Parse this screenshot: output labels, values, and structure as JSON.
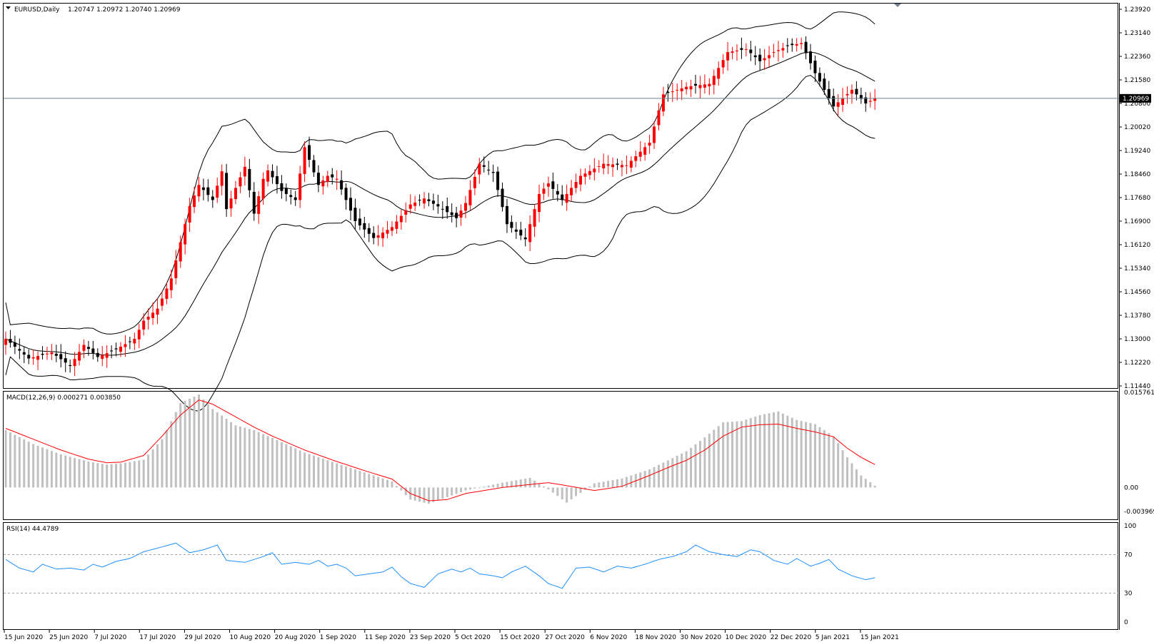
{
  "header": {
    "symbol": "EURUSD,Daily",
    "ohlc": "1.20747 1.20972 1.20740 1.20969"
  },
  "macd_label": "MACD(12,26,9) 0.000271 0.003850",
  "rsi_label": "RSI(14) 44.4789",
  "current_price": "1.20969",
  "colors": {
    "bull": "#ff0000",
    "bear": "#000000",
    "bands": "#000000",
    "macd_hist": "#c0c0c0",
    "macd_signal": "#ff0000",
    "rsi": "#1e90ff",
    "price_line": "#708090"
  },
  "chart_data": [
    {
      "type": "candlestick",
      "title": "EURUSD,Daily",
      "y_ticks": [
        "1.23920",
        "1.23140",
        "1.22360",
        "1.21580",
        "1.20800",
        "1.20020",
        "1.19240",
        "1.18460",
        "1.17680",
        "1.16900",
        "1.16120",
        "1.15340",
        "1.14560",
        "1.13780",
        "1.13000",
        "1.12220",
        "1.11440"
      ],
      "ylim": [
        1.1144,
        1.2392
      ],
      "x_ticks": [
        "15 Jun 2020",
        "25 Jun 2020",
        "7 Jul 2020",
        "17 Jul 2020",
        "29 Jul 2020",
        "10 Aug 2020",
        "20 Aug 2020",
        "1 Sep 2020",
        "11 Sep 2020",
        "23 Sep 2020",
        "5 Oct 2020",
        "15 Oct 2020",
        "27 Oct 2020",
        "6 Nov 2020",
        "18 Nov 2020",
        "30 Nov 2020",
        "10 Dec 2020",
        "22 Dec 2020",
        "5 Jan 2021",
        "15 Jan 2021"
      ],
      "series": [
        {
          "name": "EURUSD",
          "close_anchors": [
            1.13,
            1.1235,
            1.1255,
            1.121,
            1.128,
            1.124,
            1.1265,
            1.13,
            1.136,
            1.14,
            1.15,
            1.162,
            1.174,
            1.181,
            1.176,
            1.1855,
            1.173,
            1.187,
            1.1715,
            1.183,
            1.1858,
            1.179,
            1.176,
            1.1935,
            1.181,
            1.184,
            1.183,
            1.169,
            1.1634,
            1.167,
            1.1745,
            1.1765,
            1.173,
            1.17,
            1.175,
            1.188,
            1.185,
            1.168,
            1.163,
            1.178,
            1.1815,
            1.176,
            1.184,
            1.188,
            1.1875,
            1.195,
            1.211,
            1.2135,
            1.2145,
            1.225,
            1.226,
            1.222,
            1.225,
            1.227,
            1.228,
            1.218,
            1.207,
            1.2125,
            1.208,
            1.2097
          ],
          "anchor_labels_x": [
            0,
            5,
            10,
            14,
            17,
            20,
            24,
            28,
            30,
            33,
            36,
            38,
            40,
            42,
            45,
            47,
            48,
            52,
            54,
            56,
            57,
            60,
            63,
            65,
            68,
            70,
            72,
            76,
            80,
            84,
            88,
            91,
            95,
            98,
            100,
            103,
            106,
            109,
            113,
            116,
            118,
            121,
            125,
            130,
            135,
            140,
            143,
            148,
            153,
            157,
            161,
            164,
            167,
            170,
            173,
            176,
            180,
            184,
            187,
            189
          ]
        },
        {
          "name": "Bands",
          "upper_top_region": 1.225,
          "lower_bottom_region": 1.116
        }
      ]
    },
    {
      "type": "bar",
      "title": "MACD(12,26,9) 0.000271 0.003850",
      "y_ticks": [
        "0.015761",
        "0.00",
        "-0.003969"
      ],
      "ylim": [
        -0.003969,
        0.015761
      ],
      "series": [
        {
          "name": "MACD",
          "anchor_values": [
            0.0095,
            0.0072,
            0.0055,
            0.0043,
            0.0038,
            0.004,
            0.0046,
            0.008,
            0.014,
            0.0154,
            0.013,
            0.0103,
            0.0095,
            0.0082,
            0.0058,
            0.004,
            0.0025,
            0.001,
            -0.002,
            -0.0027,
            -0.0016,
            -0.0005,
            0.0008,
            0.0016,
            -0.0003,
            -0.0025,
            0.0007,
            0.0015,
            0.003,
            0.0045,
            0.006,
            0.0083,
            0.0108,
            0.011,
            0.012,
            0.0126,
            0.0112,
            0.0105,
            0.0085,
            0.005,
            0.002,
            0.0003
          ],
          "anchor_x": [
            0,
            6,
            12,
            18,
            22,
            25,
            30,
            34,
            38,
            42,
            45,
            50,
            54,
            58,
            65,
            72,
            78,
            84,
            88,
            92,
            96,
            100,
            108,
            114,
            118,
            122,
            128,
            134,
            140,
            144,
            148,
            152,
            156,
            160,
            164,
            168,
            172,
            176,
            180,
            183,
            186,
            189
          ]
        },
        {
          "name": "Signal",
          "anchor_values": [
            0.0098,
            0.008,
            0.0062,
            0.0047,
            0.0041,
            0.0042,
            0.0053,
            0.0085,
            0.012,
            0.0145,
            0.0138,
            0.0117,
            0.01,
            0.0085,
            0.0062,
            0.0043,
            0.0028,
            0.0014,
            -0.001,
            -0.0022,
            -0.002,
            -0.001,
            0.0,
            0.0005,
            0.0008,
            0.0003,
            -0.0005,
            0.0002,
            0.002,
            0.0033,
            0.0045,
            0.0062,
            0.0085,
            0.01,
            0.0104,
            0.0105,
            0.0098,
            0.0092,
            0.0084,
            0.0065,
            0.005,
            0.0038
          ],
          "anchor_x": [
            0,
            6,
            12,
            18,
            22,
            25,
            30,
            34,
            38,
            42,
            45,
            50,
            54,
            58,
            65,
            72,
            78,
            84,
            88,
            92,
            96,
            100,
            108,
            114,
            118,
            122,
            128,
            134,
            140,
            144,
            148,
            152,
            156,
            160,
            164,
            168,
            172,
            176,
            180,
            183,
            186,
            189
          ]
        }
      ]
    },
    {
      "type": "line",
      "title": "RSI(14) 44.4789",
      "y_ticks": [
        "100",
        "70",
        "30",
        "0"
      ],
      "ylim": [
        0,
        100
      ],
      "levels": [
        70,
        30
      ],
      "series": [
        {
          "name": "RSI",
          "anchor_values": [
            65,
            56,
            52,
            60,
            55,
            56,
            54,
            60,
            57,
            63,
            66,
            73,
            78,
            82,
            72,
            75,
            80,
            64,
            62,
            68,
            72,
            60,
            62,
            60,
            64,
            58,
            60,
            56,
            48,
            50,
            52,
            57,
            47,
            40,
            36,
            50,
            55,
            52,
            56,
            50,
            48,
            46,
            52,
            58,
            48,
            40,
            35,
            56,
            57,
            52,
            58,
            56,
            60,
            65,
            68,
            73,
            80,
            73,
            70,
            68,
            75,
            73,
            64,
            60,
            66,
            58,
            61,
            65,
            55,
            48,
            44,
            46
          ],
          "anchor_x": [
            0,
            3,
            6,
            8,
            11,
            14,
            17,
            19,
            21,
            24,
            27,
            30,
            34,
            37,
            40,
            43,
            46,
            48,
            52,
            56,
            58,
            60,
            63,
            66,
            68,
            70,
            72,
            74,
            76,
            79,
            82,
            84,
            86,
            88,
            91,
            94,
            97,
            99,
            101,
            103,
            106,
            108,
            110,
            113,
            116,
            118,
            121,
            124,
            127,
            130,
            133,
            136,
            139,
            142,
            145,
            148,
            150,
            153,
            156,
            159,
            162,
            164,
            167,
            170,
            172,
            175,
            177,
            179,
            181,
            184,
            187,
            189
          ]
        }
      ]
    }
  ],
  "meta_script": {}
}
